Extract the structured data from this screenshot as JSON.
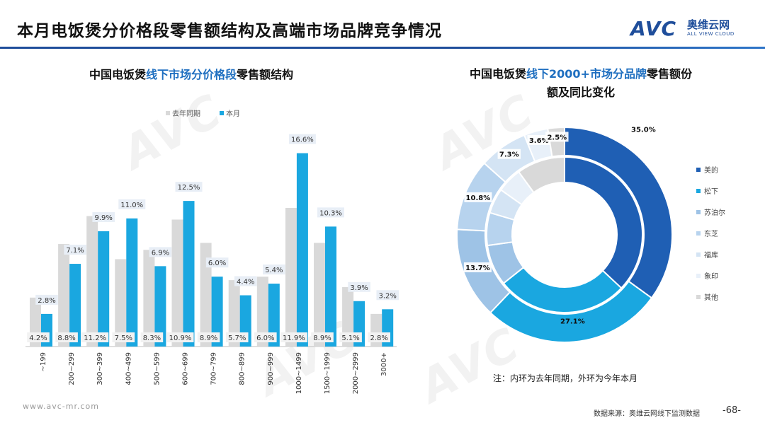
{
  "header": {
    "title": "本月电饭煲分价格段零售额结构及高端市场品牌竞争情况",
    "logo_mark": "AVC",
    "logo_cn": "奥维云网",
    "logo_en": "ALL VIEW CLOUD"
  },
  "watermark_text": "AVC",
  "footer": {
    "url": "www.avc-mr.com",
    "source": "数据来源：奥维云网线下监测数据",
    "page": "-68-"
  },
  "colors": {
    "last_year": "#d9d9d9",
    "this_month": "#1aa7e0",
    "accent": "#1f4e9b",
    "label_box": "#e8eef6"
  },
  "chart_data": [
    {
      "type": "bar",
      "title": "中国电饭煲线下市场分价格段零售额结构",
      "title_parts": [
        "中国电饭煲",
        "线下市场分价格段",
        "零售额结构"
      ],
      "legend": [
        "去年同期",
        "本月"
      ],
      "categories": [
        "~199",
        "200~299",
        "300~399",
        "400~499",
        "500~599",
        "600~699",
        "700~799",
        "800~899",
        "900~999",
        "1000~1499",
        "1500~1999",
        "2000~2999",
        "3000+"
      ],
      "series": [
        {
          "name": "去年同期",
          "values": [
            4.2,
            8.8,
            11.2,
            7.5,
            8.3,
            10.9,
            8.9,
            5.7,
            6.0,
            11.9,
            8.9,
            5.1,
            2.8
          ],
          "labels": [
            "4.2%",
            "8.8%",
            "11.2%",
            "7.5%",
            "8.3%",
            "10.9%",
            "8.9%",
            "5.7%",
            "6.0%",
            "11.9%",
            "8.9%",
            "5.1%",
            "2.8%"
          ]
        },
        {
          "name": "本月",
          "values": [
            2.8,
            7.1,
            9.9,
            11.0,
            6.9,
            12.5,
            6.0,
            4.4,
            5.4,
            16.6,
            10.3,
            3.9,
            3.2
          ],
          "labels": [
            "2.8%",
            "7.1%",
            "9.9%",
            "11.0%",
            "6.9%",
            "12.5%",
            "6.0%",
            "4.4%",
            "5.4%",
            "16.6%",
            "10.3%",
            "3.9%",
            "3.2%"
          ]
        }
      ],
      "ylim": [
        0,
        17
      ]
    },
    {
      "type": "pie",
      "subtype": "double-ring-donut",
      "title_line1_parts": [
        "中国电饭煲",
        "线下2000+市场分品牌",
        "零售额份"
      ],
      "title_line2": "额及同比变化",
      "legend": [
        "美的",
        "松下",
        "苏泊尔",
        "东芝",
        "福库",
        "象印",
        "其他"
      ],
      "colors": [
        "#1f5fb4",
        "#1aa7e0",
        "#9ec3e6",
        "#b7d3ee",
        "#d4e4f4",
        "#e8f0f9",
        "#d9d9d9"
      ],
      "outer_ring": {
        "name": "本月",
        "values": [
          35.0,
          27.1,
          13.7,
          10.8,
          7.3,
          3.6,
          2.5
        ],
        "labels": [
          "35.0%",
          "27.1%",
          "13.7%",
          "10.8%",
          "7.3%",
          "3.6%",
          "2.5%"
        ]
      },
      "inner_ring": {
        "name": "去年同期",
        "values": [
          37.0,
          27.3,
          8.5,
          6.8,
          5.2,
          5.2,
          10.0
        ]
      },
      "note": "注：内环为去年同期，外环为今年本月"
    }
  ]
}
